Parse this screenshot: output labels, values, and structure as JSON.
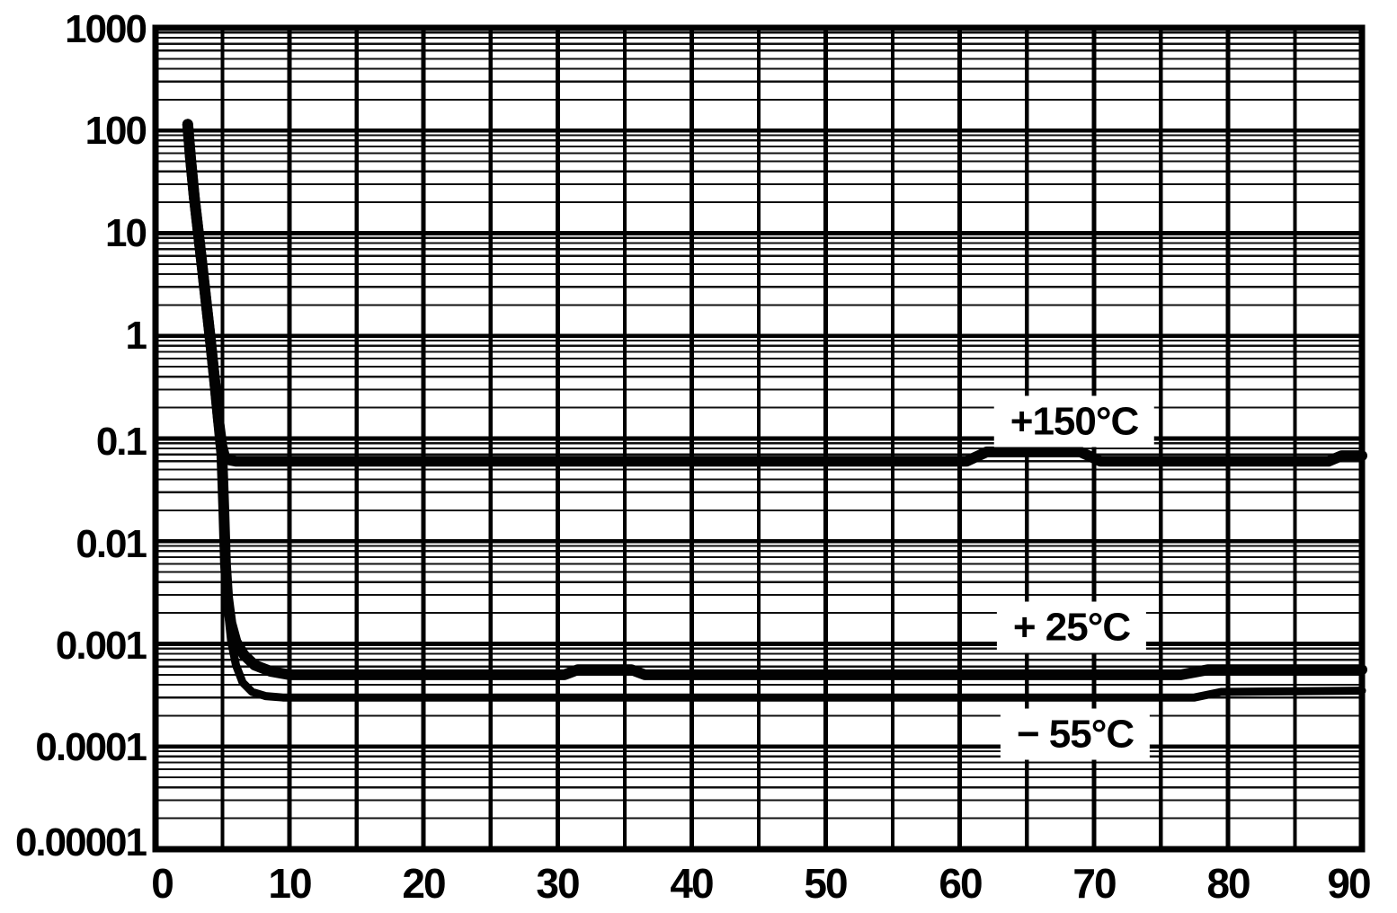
{
  "page": {
    "background": "#ffffff",
    "ink": "#000000"
  },
  "chart_data": {
    "type": "line",
    "title": "",
    "xlabel": "",
    "ylabel": "",
    "legend_position": "inline-labels",
    "grid": "on",
    "x_axis": {
      "scale": "linear",
      "min": 0,
      "max": 90,
      "tick_step": 10,
      "minor_grid_step": 5,
      "tick_labels": [
        "0",
        "10",
        "20",
        "30",
        "40",
        "50",
        "60",
        "70",
        "80",
        "90"
      ]
    },
    "y_axis": {
      "scale": "log",
      "min": 1e-05,
      "max": 1000,
      "tick_labels": [
        "1000",
        "100",
        "10",
        "1",
        "0.1",
        "0.01",
        "0.001",
        "0.0001",
        "0.00001"
      ]
    },
    "series": [
      {
        "name": "+150°C",
        "points": [
          [
            2.4,
            115
          ],
          [
            2.6,
            55
          ],
          [
            2.9,
            22
          ],
          [
            3.2,
            10
          ],
          [
            3.5,
            4.5
          ],
          [
            3.8,
            2.0
          ],
          [
            4.1,
            0.9
          ],
          [
            4.4,
            0.38
          ],
          [
            4.7,
            0.15
          ],
          [
            4.95,
            0.085
          ],
          [
            5.2,
            0.063
          ],
          [
            6.0,
            0.06
          ],
          [
            60.5,
            0.06
          ],
          [
            62,
            0.074
          ],
          [
            69,
            0.074
          ],
          [
            70.5,
            0.06
          ],
          [
            87.5,
            0.06
          ],
          [
            88.5,
            0.068
          ],
          [
            90,
            0.068
          ]
        ]
      },
      {
        "name": "+25°C",
        "points": [
          [
            2.4,
            115
          ],
          [
            2.6,
            55
          ],
          [
            2.9,
            22
          ],
          [
            3.2,
            10
          ],
          [
            3.5,
            4.5
          ],
          [
            3.8,
            2.0
          ],
          [
            4.1,
            0.9
          ],
          [
            4.4,
            0.38
          ],
          [
            4.7,
            0.15
          ],
          [
            4.95,
            0.07
          ],
          [
            5.1,
            0.02
          ],
          [
            5.22,
            0.006
          ],
          [
            5.38,
            0.0028
          ],
          [
            5.62,
            0.0016
          ],
          [
            6.0,
            0.00105
          ],
          [
            6.6,
            0.00078
          ],
          [
            7.4,
            0.00062
          ],
          [
            8.6,
            0.00054
          ],
          [
            10,
            0.0005
          ],
          [
            30.5,
            0.0005
          ],
          [
            31.5,
            0.00056
          ],
          [
            35.5,
            0.00056
          ],
          [
            36.5,
            0.0005
          ],
          [
            76.5,
            0.0005
          ],
          [
            78.5,
            0.00056
          ],
          [
            90,
            0.00056
          ]
        ]
      },
      {
        "name": "−55°C",
        "points": [
          [
            2.4,
            115
          ],
          [
            2.6,
            55
          ],
          [
            2.9,
            22
          ],
          [
            3.2,
            10
          ],
          [
            3.5,
            4.5
          ],
          [
            3.8,
            2.0
          ],
          [
            4.1,
            0.9
          ],
          [
            4.4,
            0.38
          ],
          [
            4.7,
            0.15
          ],
          [
            4.95,
            0.065
          ],
          [
            5.1,
            0.016
          ],
          [
            5.25,
            0.005
          ],
          [
            5.4,
            0.0021
          ],
          [
            5.65,
            0.00105
          ],
          [
            6.0,
            0.00062
          ],
          [
            6.5,
            0.00042
          ],
          [
            7.2,
            0.00034
          ],
          [
            8.2,
            0.00031
          ],
          [
            9.5,
            0.0003
          ],
          [
            77.5,
            0.0003
          ],
          [
            79.5,
            0.00034
          ],
          [
            90,
            0.00035
          ]
        ]
      }
    ],
    "annotations": [
      {
        "text": "+150°C"
      },
      {
        "text": "+ 25°C"
      },
      {
        "text": "− 55°C"
      }
    ]
  }
}
